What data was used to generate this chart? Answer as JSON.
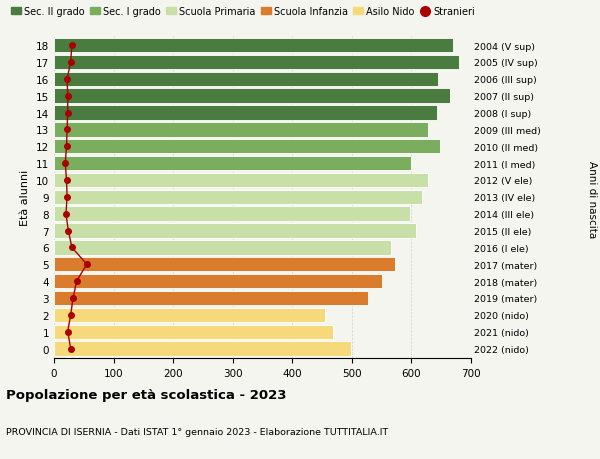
{
  "ages": [
    18,
    17,
    16,
    15,
    14,
    13,
    12,
    11,
    10,
    9,
    8,
    7,
    6,
    5,
    4,
    3,
    2,
    1,
    0
  ],
  "labels_right": [
    "2004 (V sup)",
    "2005 (IV sup)",
    "2006 (III sup)",
    "2007 (II sup)",
    "2008 (I sup)",
    "2009 (III med)",
    "2010 (II med)",
    "2011 (I med)",
    "2012 (V ele)",
    "2013 (IV ele)",
    "2014 (III ele)",
    "2015 (II ele)",
    "2016 (I ele)",
    "2017 (mater)",
    "2018 (mater)",
    "2019 (mater)",
    "2020 (nido)",
    "2021 (nido)",
    "2022 (nido)"
  ],
  "bar_values": [
    670,
    680,
    645,
    665,
    643,
    627,
    648,
    600,
    628,
    618,
    597,
    607,
    565,
    573,
    550,
    527,
    455,
    468,
    498
  ],
  "stranieri_values": [
    30,
    28,
    22,
    23,
    23,
    22,
    21,
    19,
    21,
    22,
    20,
    24,
    30,
    55,
    38,
    32,
    28,
    23,
    28
  ],
  "bar_colors_by_age": {
    "18": "#4a7c3f",
    "17": "#4a7c3f",
    "16": "#4a7c3f",
    "15": "#4a7c3f",
    "14": "#4a7c3f",
    "13": "#7aad5e",
    "12": "#7aad5e",
    "11": "#7aad5e",
    "10": "#c8e0a8",
    "9": "#c8e0a8",
    "8": "#c8e0a8",
    "7": "#c8e0a8",
    "6": "#c8e0a8",
    "5": "#d97c2e",
    "4": "#d97c2e",
    "3": "#d97c2e",
    "2": "#f5d97a",
    "1": "#f5d97a",
    "0": "#f5d97a"
  },
  "legend_items": [
    {
      "label": "Sec. II grado",
      "color": "#4a7c3f",
      "type": "patch"
    },
    {
      "label": "Sec. I grado",
      "color": "#7aad5e",
      "type": "patch"
    },
    {
      "label": "Scuola Primaria",
      "color": "#c8e0a8",
      "type": "patch"
    },
    {
      "label": "Scuola Infanzia",
      "color": "#d97c2e",
      "type": "patch"
    },
    {
      "label": "Asilo Nido",
      "color": "#f5d97a",
      "type": "patch"
    },
    {
      "label": "Stranieri",
      "color": "#aa0000",
      "type": "marker"
    }
  ],
  "ylabel_left": "Età alunni",
  "ylabel_right": "Anni di nascita",
  "title": "Popolazione per età scolastica - 2023",
  "subtitle": "PROVINCIA DI ISERNIA - Dati ISTAT 1° gennaio 2023 - Elaborazione TUTTITALIA.IT",
  "xlim": [
    0,
    700
  ],
  "xticks": [
    0,
    100,
    200,
    300,
    400,
    500,
    600,
    700
  ],
  "background_color": "#f5f5f0",
  "bar_height": 0.85,
  "stranieri_color": "#aa0000",
  "stranieri_markersize": 4,
  "stranieri_linewidth": 1.0
}
